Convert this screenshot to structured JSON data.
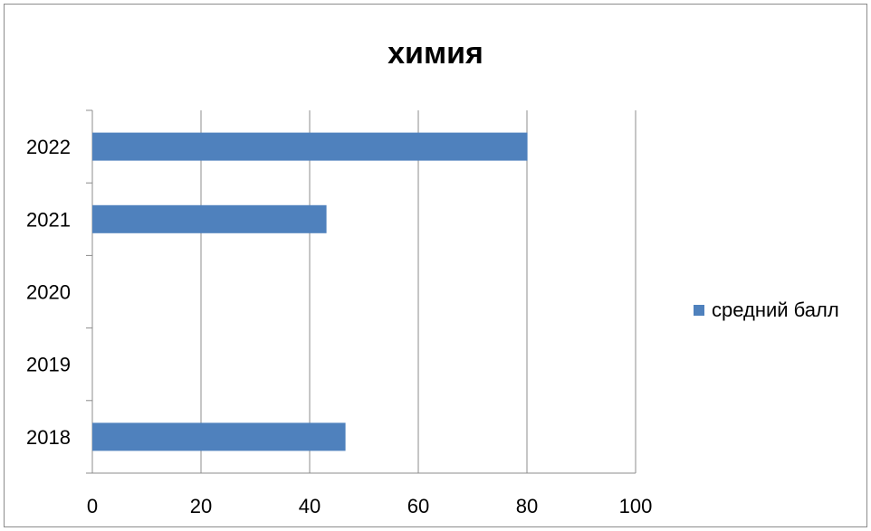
{
  "colors": {
    "bar": "#4f81bd",
    "grid": "#8c8c8c",
    "frame": "#8c8c8c"
  },
  "chart_data": {
    "type": "bar",
    "orientation": "horizontal",
    "title": "химия",
    "categories": [
      "2018",
      "2019",
      "2020",
      "2021",
      "2022"
    ],
    "series": [
      {
        "name": "средний балл",
        "values": [
          46.6,
          null,
          null,
          43.1,
          80.1
        ]
      }
    ],
    "xlim": [
      0,
      100
    ],
    "xticks": [
      0,
      20,
      40,
      60,
      80,
      100
    ],
    "grid": true,
    "legend": "right"
  }
}
